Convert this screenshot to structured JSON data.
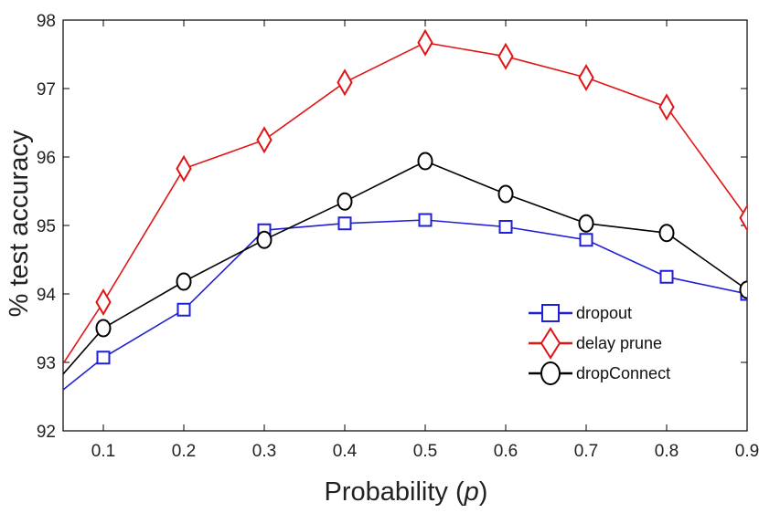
{
  "chart_data": {
    "type": "line",
    "title": "",
    "xlabel_prefix": "Probability (",
    "xlabel_var": "p",
    "xlabel_suffix": ")",
    "ylabel": "% test accuracy",
    "xlim": [
      0.05,
      0.9
    ],
    "ylim": [
      92,
      98
    ],
    "xticks": [
      "0.1",
      "0.2",
      "0.3",
      "0.4",
      "0.5",
      "0.6",
      "0.7",
      "0.8",
      "0.9"
    ],
    "yticks": [
      "92",
      "93",
      "94",
      "95",
      "96",
      "97",
      "98"
    ],
    "grid": false,
    "legend_position": "lower-right",
    "series": [
      {
        "name": "dropout",
        "color": "#1f1fd6",
        "marker": "square",
        "x": [
          0.05,
          0.1,
          0.2,
          0.3,
          0.4,
          0.5,
          0.6,
          0.7,
          0.8,
          0.9
        ],
        "y": [
          92.6,
          93.07,
          93.77,
          94.93,
          95.03,
          95.08,
          94.98,
          94.79,
          94.25,
          94.0
        ],
        "marker_from": 1
      },
      {
        "name": "delay prune",
        "color": "#e01515",
        "marker": "diamond",
        "x": [
          0.05,
          0.1,
          0.2,
          0.3,
          0.4,
          0.5,
          0.6,
          0.7,
          0.8,
          0.9
        ],
        "y": [
          92.98,
          93.88,
          95.83,
          96.25,
          97.09,
          97.67,
          97.47,
          97.16,
          96.73,
          95.11
        ],
        "marker_from": 1
      },
      {
        "name": "dropConnect",
        "color": "#000000",
        "marker": "circle",
        "x": [
          0.05,
          0.1,
          0.2,
          0.3,
          0.4,
          0.5,
          0.6,
          0.7,
          0.8,
          0.9
        ],
        "y": [
          92.83,
          93.5,
          94.18,
          94.79,
          95.35,
          95.94,
          95.46,
          95.03,
          94.89,
          94.06
        ],
        "marker_from": 1
      }
    ]
  }
}
